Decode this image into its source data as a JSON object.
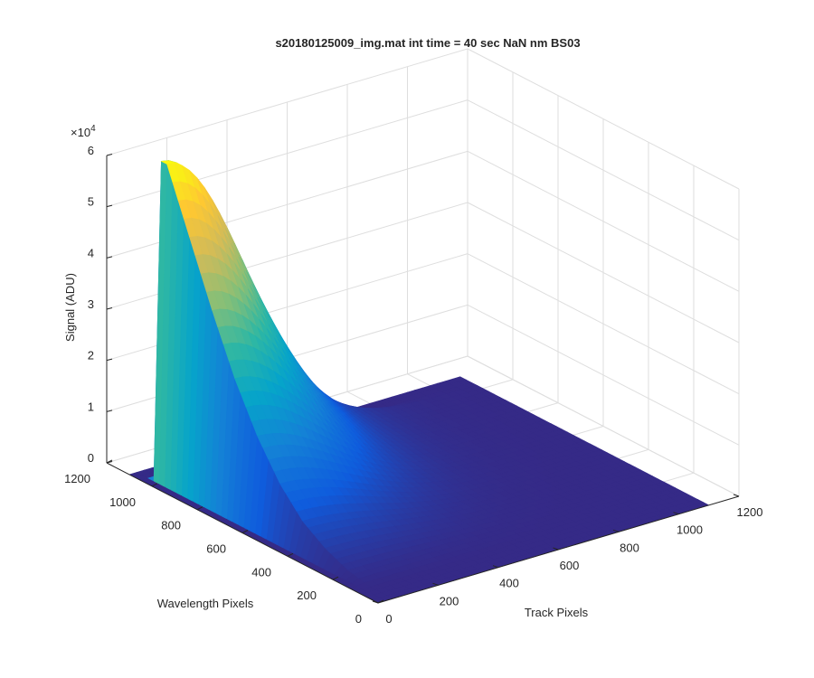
{
  "chart_data": {
    "type": "surface",
    "title": "s20180125009_img.mat int time = 40 sec  NaN nm BS03",
    "xlabel": "Track Pixels",
    "ylabel": "Wavelength Pixels",
    "zlabel": "Signal (ADU)",
    "z_exponent_label": "×10",
    "z_exponent_power": "4",
    "xlim": [
      0,
      1200
    ],
    "ylim": [
      0,
      1200
    ],
    "zlim": [
      0,
      60000
    ],
    "x_ticks": [
      0,
      200,
      400,
      600,
      800,
      1000,
      1200
    ],
    "y_ticks": [
      0,
      200,
      400,
      600,
      800,
      1000,
      1200
    ],
    "z_ticks": [
      0,
      1,
      2,
      3,
      4,
      5,
      6
    ],
    "x_tick_labels": [
      "0",
      "200",
      "400",
      "600",
      "800",
      "1000",
      "1200"
    ],
    "y_tick_labels": [
      "0",
      "200",
      "400",
      "600",
      "800",
      "1000",
      "1200"
    ],
    "z_tick_labels": [
      "0",
      "1",
      "2",
      "3",
      "4",
      "5",
      "6"
    ],
    "grid": true,
    "colormap": "parula",
    "colormap_colors": [
      "#352a87",
      "#0f5cdd",
      "#1481d6",
      "#06a4ca",
      "#2eb7a4",
      "#87bf77",
      "#d1bb59",
      "#fec832",
      "#f9fb0e"
    ],
    "surface": {
      "data_extent_x": [
        0,
        1100
      ],
      "data_extent_y": [
        0,
        1100
      ],
      "peak_position": {
        "x": 50,
        "y": 1000
      },
      "peak_value": 62000,
      "ridge_profile": [
        {
          "y": 1000,
          "peak": 62000
        },
        {
          "y": 900,
          "peak": 50000
        },
        {
          "y": 800,
          "peak": 38000
        },
        {
          "y": 700,
          "peak": 27000
        },
        {
          "y": 600,
          "peak": 18000
        },
        {
          "y": 500,
          "peak": 11000
        },
        {
          "y": 400,
          "peak": 6000
        },
        {
          "y": 300,
          "peak": 3000
        },
        {
          "y": 200,
          "peak": 1000
        },
        {
          "y": 100,
          "peak": 0
        }
      ]
    }
  }
}
